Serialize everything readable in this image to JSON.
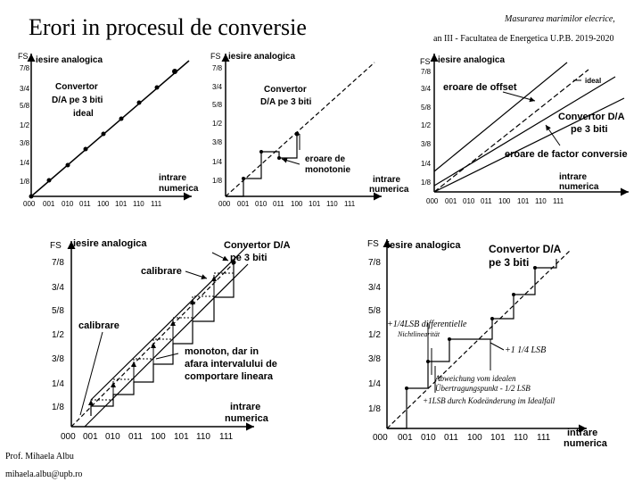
{
  "slide": {
    "title": "Erori in procesul de conversie",
    "header_line1": "Masurarea marimilor elecrice,",
    "header_line2": "an III - Facultatea de Energetica U.P.B. 2019-2020",
    "footer_author": "Prof. Mihaela Albu",
    "footer_email": "mihaela.albu@upb.ro"
  },
  "axes": {
    "y_title": "iesire analogica",
    "fs": "FS",
    "x_title_1": "intrare",
    "x_title_2": "numerica",
    "y_ticks": [
      "7/8",
      "3/4",
      "5/8",
      "1/2",
      "3/8",
      "1/4",
      "1/8"
    ],
    "x_ticks": [
      "000",
      "001",
      "010",
      "011",
      "100",
      "101",
      "110",
      "111"
    ]
  },
  "diagrams": {
    "ideal": {
      "label_1": "Convertor",
      "label_2": "D/A pe 3 biti",
      "label_3": "ideal"
    },
    "monotone": {
      "label_1": "Convertor",
      "label_2": "D/A pe 3 biti",
      "error_1": "eroare de",
      "error_2": "monotonie"
    },
    "offset": {
      "ideal": "ideal",
      "offset_error": "eroare de offset",
      "conv_1": "Convertor D/A",
      "conv_2": "pe 3 biti",
      "gain_error": "eroare de factor conversie"
    },
    "calibration": {
      "conv_1": "Convertor D/A",
      "conv_2": "pe 3 biti",
      "calib_top": "calibrare",
      "calib_left": "calibrare",
      "note_1": "monoton, dar in",
      "note_2": "afara intervalului de",
      "note_3": "comportare lineara"
    },
    "dnl": {
      "conv_1": "Convertor D/A",
      "conv_2": "pe 3 biti",
      "ann_1": "+1/4LSB differentielle",
      "ann_2": "Nichtlinearität",
      "ann_3": "+1 1/4 LSB",
      "ann_4": "Abweichung vom idealen",
      "ann_5": "Übertragungspunkt - 1/2 LSB",
      "ann_6": "+1LSB durch Kodeänderung im Idealfall"
    }
  }
}
